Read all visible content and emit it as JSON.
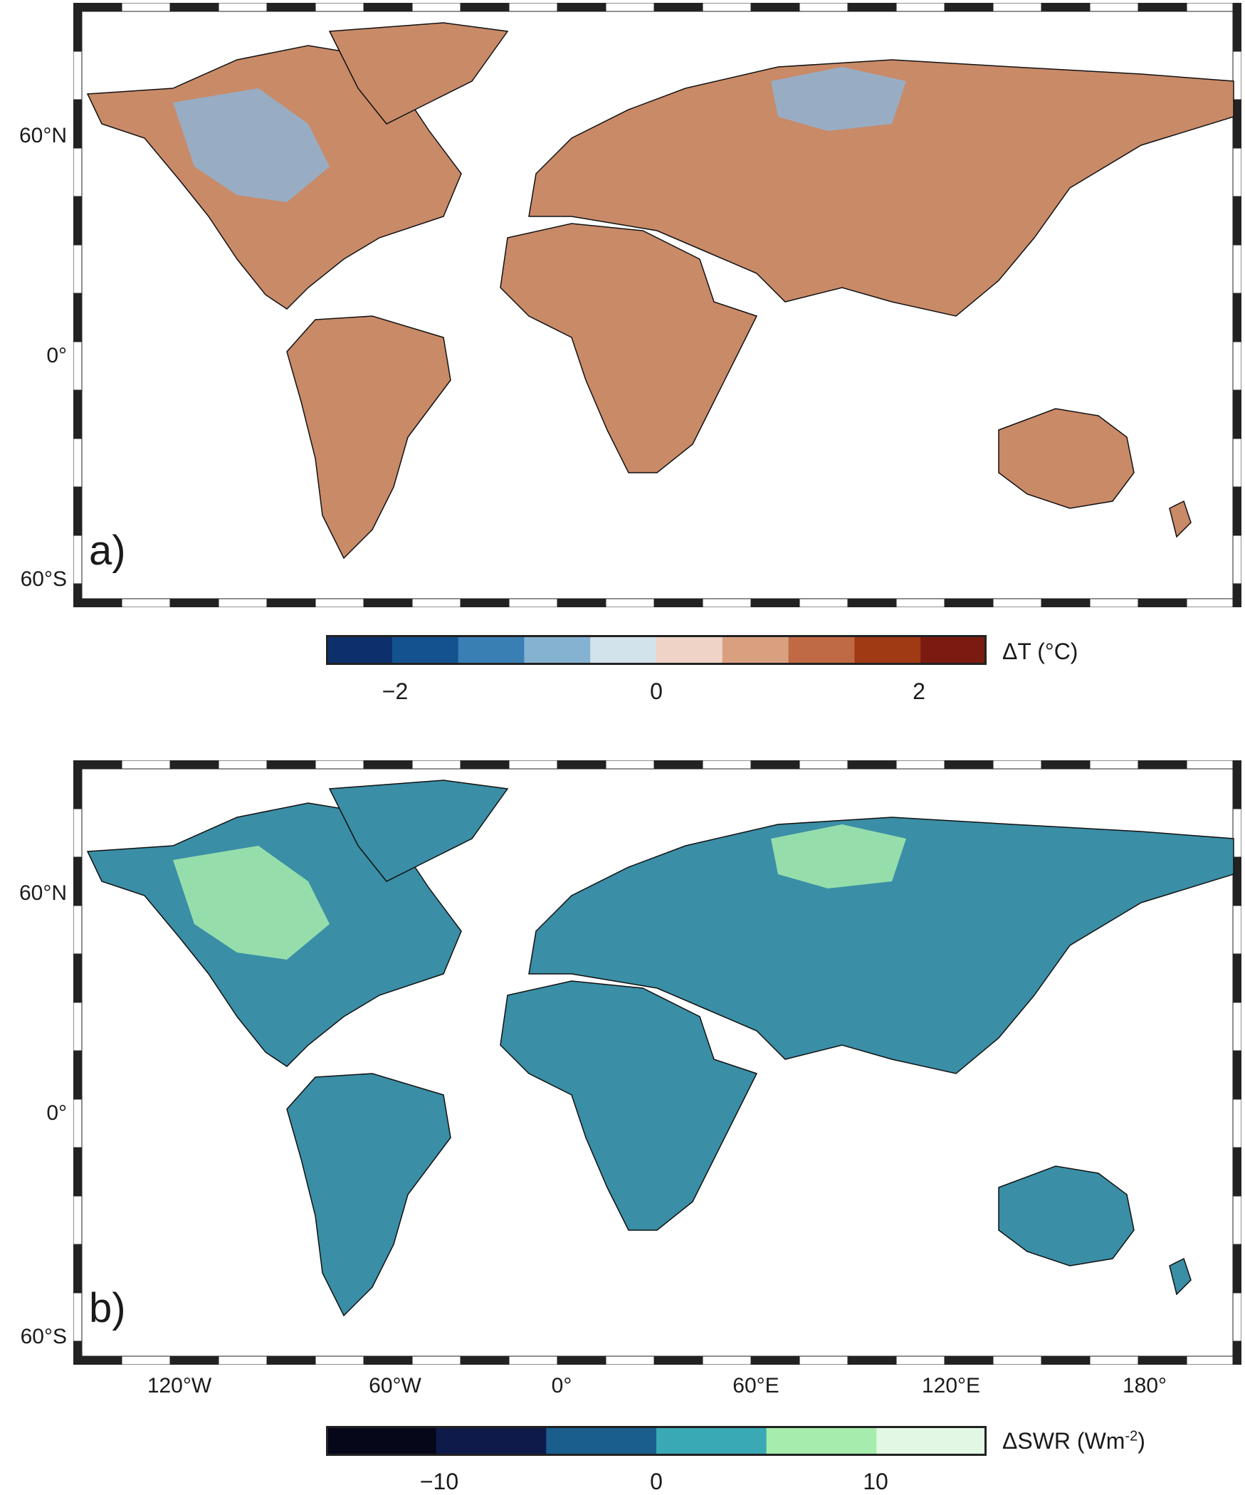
{
  "panels": [
    {
      "letter": "a)",
      "lat_labels": [
        "60°N",
        "0°",
        "60°S"
      ],
      "colorbar": {
        "title": "ΔT (°C)",
        "ticks": [
          "−2",
          "0",
          "2"
        ],
        "colors": [
          "#0d2f6b",
          "#14528f",
          "#3a7fb3",
          "#85b2d1",
          "#d3e3eb",
          "#efd3c6",
          "#d9a080",
          "#c06a45",
          "#a03a14",
          "#7a1a10"
        ]
      },
      "land_color_main": "#c98a68",
      "land_color_cold": "#8fb3d3"
    },
    {
      "letter": "b)",
      "lat_labels": [
        "60°N",
        "0°",
        "60°S"
      ],
      "colorbar": {
        "title": "ΔSWR (Wm",
        "title_sup": "-2",
        "title_end": ")",
        "ticks": [
          "−10",
          "0",
          "10"
        ],
        "colors": [
          "#06081a",
          "#0e1b4a",
          "#1a5e8e",
          "#39a9b5",
          "#a6ecad",
          "#e2f8e4"
        ]
      },
      "land_color_main": "#3a8ea6",
      "land_color_cold": "#a6ecad"
    }
  ],
  "lon_labels": [
    "120°W",
    "60°W",
    "0°",
    "60°E",
    "120°E",
    "180°"
  ]
}
